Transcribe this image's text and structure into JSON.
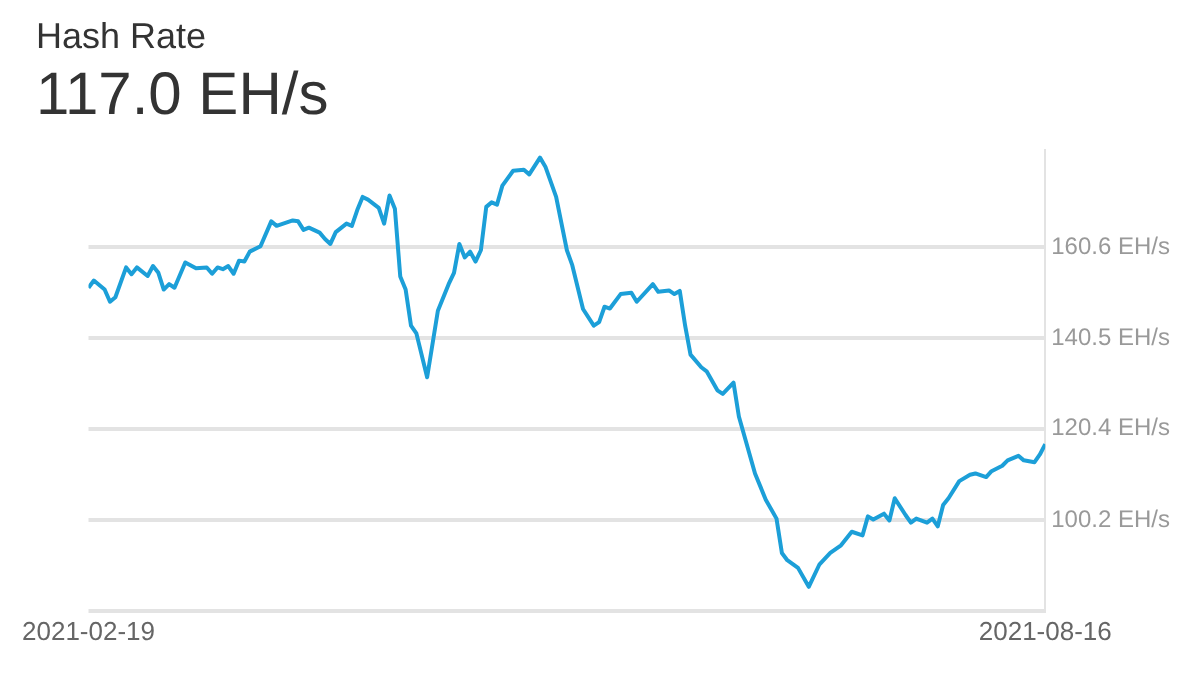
{
  "chart_data": {
    "type": "line",
    "title": "Hash Rate",
    "subtitle": "117.0 EH/s",
    "x": [
      "2021-02-19",
      "2021-02-20",
      "2021-02-22",
      "2021-02-23",
      "2021-02-24",
      "2021-02-26",
      "2021-02-27",
      "2021-02-28",
      "2021-03-02",
      "2021-03-03",
      "2021-03-04",
      "2021-03-05",
      "2021-03-06",
      "2021-03-07",
      "2021-03-09",
      "2021-03-11",
      "2021-03-13",
      "2021-03-14",
      "2021-03-15",
      "2021-03-16",
      "2021-03-17",
      "2021-03-18",
      "2021-03-19",
      "2021-03-20",
      "2021-03-21",
      "2021-03-23",
      "2021-03-25",
      "2021-03-26",
      "2021-03-29",
      "2021-03-30",
      "2021-03-31",
      "2021-04-01",
      "2021-04-03",
      "2021-04-04",
      "2021-04-05",
      "2021-04-06",
      "2021-04-08",
      "2021-04-09",
      "2021-04-10",
      "2021-04-11",
      "2021-04-12",
      "2021-04-14",
      "2021-04-15",
      "2021-04-16",
      "2021-04-17",
      "2021-04-18",
      "2021-04-19",
      "2021-04-20",
      "2021-04-21",
      "2021-04-23",
      "2021-04-25",
      "2021-04-27",
      "2021-04-28",
      "2021-04-29",
      "2021-04-30",
      "2021-05-01",
      "2021-05-02",
      "2021-05-03",
      "2021-05-04",
      "2021-05-05",
      "2021-05-06",
      "2021-05-07",
      "2021-05-09",
      "2021-05-11",
      "2021-05-12",
      "2021-05-14",
      "2021-05-15",
      "2021-05-17",
      "2021-05-19",
      "2021-05-20",
      "2021-05-22",
      "2021-05-24",
      "2021-05-25",
      "2021-05-26",
      "2021-05-27",
      "2021-05-29",
      "2021-05-31",
      "2021-06-01",
      "2021-06-04",
      "2021-06-05",
      "2021-06-07",
      "2021-06-08",
      "2021-06-09",
      "2021-06-10",
      "2021-06-11",
      "2021-06-13",
      "2021-06-14",
      "2021-06-16",
      "2021-06-17",
      "2021-06-19",
      "2021-06-20",
      "2021-06-23",
      "2021-06-25",
      "2021-06-27",
      "2021-06-28",
      "2021-06-29",
      "2021-07-01",
      "2021-07-03",
      "2021-07-05",
      "2021-07-07",
      "2021-07-09",
      "2021-07-11",
      "2021-07-13",
      "2021-07-14",
      "2021-07-15",
      "2021-07-17",
      "2021-07-18",
      "2021-07-19",
      "2021-07-21",
      "2021-07-22",
      "2021-07-23",
      "2021-07-25",
      "2021-07-26",
      "2021-07-27",
      "2021-07-28",
      "2021-07-29",
      "2021-07-31",
      "2021-08-02",
      "2021-08-03",
      "2021-08-05",
      "2021-08-06",
      "2021-08-08",
      "2021-08-09",
      "2021-08-11",
      "2021-08-12",
      "2021-08-14",
      "2021-08-15",
      "2021-08-16"
    ],
    "series": [
      {
        "color": "#1c9fd8",
        "values": [
          151.6,
          153.2,
          151.2,
          148.5,
          149.5,
          156.1,
          154.6,
          156.1,
          154.2,
          156.4,
          154.9,
          151.2,
          152.4,
          151.6,
          157.2,
          155.9,
          156.1,
          154.7,
          156.1,
          155.7,
          156.4,
          154.7,
          157.6,
          157.4,
          159.6,
          160.8,
          166.3,
          165.3,
          166.5,
          166.3,
          164.4,
          164.9,
          163.8,
          162.4,
          161.3,
          163.9,
          165.8,
          165.3,
          168.8,
          171.7,
          171.1,
          169.3,
          165.8,
          172.0,
          169.1,
          154.1,
          151.2,
          143.2,
          141.5,
          131.8,
          146.5,
          152.4,
          154.9,
          161.3,
          158.3,
          159.6,
          157.4,
          159.9,
          169.5,
          170.5,
          170.0,
          174.2,
          177.5,
          177.7,
          176.7,
          180.4,
          178.4,
          171.7,
          159.9,
          156.6,
          146.9,
          143.2,
          144.0,
          147.4,
          147.0,
          150.2,
          150.5,
          148.5,
          152.4,
          150.7,
          151.0,
          150.2,
          150.9,
          143.2,
          136.8,
          134.0,
          133.1,
          128.9,
          128.1,
          130.6,
          123.1,
          110.5,
          104.7,
          100.5,
          92.9,
          91.3,
          89.6,
          85.4,
          90.4,
          92.9,
          94.6,
          97.6,
          96.8,
          101.0,
          100.3,
          101.6,
          100.1,
          105.0,
          101.3,
          99.6,
          100.5,
          99.6,
          100.5,
          98.8,
          103.5,
          105.0,
          108.8,
          110.2,
          110.5,
          109.7,
          111.0,
          112.2,
          113.4,
          114.4,
          113.4,
          113.0,
          114.7,
          117.0
        ]
      }
    ],
    "xlim": [
      "2021-02-19",
      "2021-08-16"
    ],
    "xticks": [
      "2021-02-19",
      "2021-08-16"
    ],
    "ylim": [
      80.1,
      182
    ],
    "yticks": [
      {
        "value": 80.1,
        "label": null
      },
      {
        "value": 100.2,
        "label": "100.2 EH/s"
      },
      {
        "value": 120.4,
        "label": "120.4 EH/s"
      },
      {
        "value": 140.5,
        "label": "140.5 EH/s"
      },
      {
        "value": 160.6,
        "label": "160.6 EH/s"
      }
    ],
    "grid": "y",
    "legend": false,
    "marker": "none",
    "line_style": "solid"
  }
}
